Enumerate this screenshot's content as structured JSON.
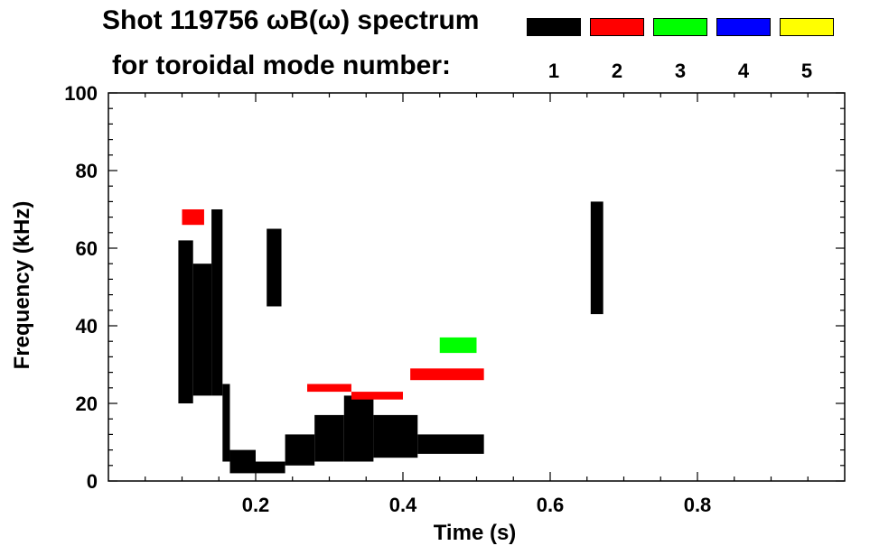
{
  "chart_data": {
    "type": "heatmap",
    "title": "Shot 119756 ωB(ω) spectrum",
    "legend_title": "for toroidal mode number:",
    "legend": [
      {
        "label": "1",
        "color": "#000000"
      },
      {
        "label": "2",
        "color": "#ff0000"
      },
      {
        "label": "3",
        "color": "#00ff00"
      },
      {
        "label": "4",
        "color": "#0000ff"
      },
      {
        "label": "5",
        "color": "#ffff00"
      }
    ],
    "xlabel": "Time (s)",
    "ylabel": "Frequency (kHz)",
    "xlim": [
      0.0,
      1.0
    ],
    "ylim": [
      0,
      100
    ],
    "xticks": [
      0.2,
      0.4,
      0.6,
      0.8
    ],
    "xtick_labels": [
      "0.2",
      "0.4",
      "0.6",
      "0.8"
    ],
    "yticks": [
      0,
      20,
      40,
      60,
      80,
      100
    ],
    "ytick_labels": [
      "0",
      "20",
      "40",
      "60",
      "80",
      "100"
    ],
    "series": [
      {
        "name": "n=1",
        "color": "#000000",
        "regions": [
          {
            "t": [
              0.095,
              0.115
            ],
            "f": [
              20,
              62
            ]
          },
          {
            "t": [
              0.115,
              0.14
            ],
            "f": [
              22,
              56
            ]
          },
          {
            "t": [
              0.14,
              0.155
            ],
            "f": [
              22,
              70
            ]
          },
          {
            "t": [
              0.155,
              0.165
            ],
            "f": [
              5,
              25
            ]
          },
          {
            "t": [
              0.165,
              0.2
            ],
            "f": [
              2,
              8
            ]
          },
          {
            "t": [
              0.2,
              0.24
            ],
            "f": [
              2,
              5
            ]
          },
          {
            "t": [
              0.24,
              0.28
            ],
            "f": [
              4,
              12
            ]
          },
          {
            "t": [
              0.28,
              0.32
            ],
            "f": [
              5,
              17
            ]
          },
          {
            "t": [
              0.32,
              0.36
            ],
            "f": [
              5,
              22
            ]
          },
          {
            "t": [
              0.36,
              0.42
            ],
            "f": [
              6,
              17
            ]
          },
          {
            "t": [
              0.42,
              0.51
            ],
            "f": [
              7,
              12
            ]
          },
          {
            "t": [
              0.215,
              0.235
            ],
            "f": [
              45,
              65
            ]
          },
          {
            "t": [
              0.655,
              0.672
            ],
            "f": [
              43,
              72
            ]
          }
        ]
      },
      {
        "name": "n=2",
        "color": "#ff0000",
        "regions": [
          {
            "t": [
              0.1,
              0.13
            ],
            "f": [
              66,
              70
            ]
          },
          {
            "t": [
              0.27,
              0.33
            ],
            "f": [
              23,
              25
            ]
          },
          {
            "t": [
              0.33,
              0.4
            ],
            "f": [
              21,
              23
            ]
          },
          {
            "t": [
              0.41,
              0.51
            ],
            "f": [
              26,
              29
            ]
          }
        ]
      },
      {
        "name": "n=3",
        "color": "#00ff00",
        "regions": [
          {
            "t": [
              0.45,
              0.5
            ],
            "f": [
              33,
              37
            ]
          }
        ]
      }
    ]
  }
}
